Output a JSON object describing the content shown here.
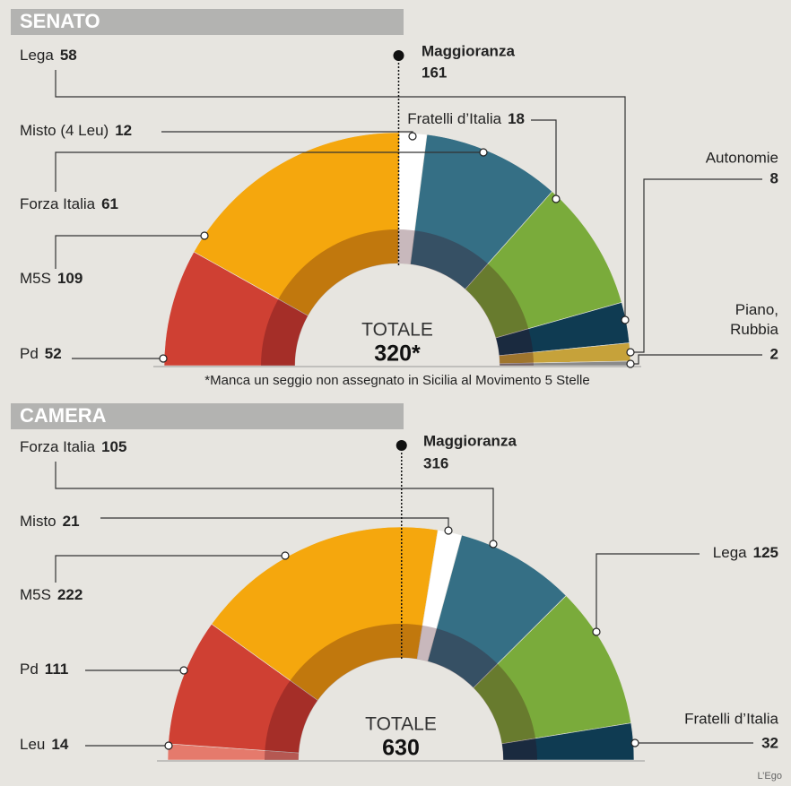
{
  "chart_data": [
    {
      "type": "semicircle",
      "title": "SENATO",
      "categories": [
        "Pd",
        "M5S",
        "Misto (4 Leu)",
        "Forza Italia",
        "Lega",
        "Fratelli d’Italia",
        "Autonomie",
        "Piano, Rubbia"
      ],
      "values": [
        52,
        109,
        12,
        61,
        58,
        18,
        8,
        2
      ],
      "colors": [
        "#cf4033",
        "#f5a70d",
        "#ffffff",
        "#356f85",
        "#7aab3b",
        "#0f3b52",
        "#c6a23a",
        "#8a8a8a"
      ],
      "majority_label": "Maggioranza",
      "majority": 161,
      "total_label": "TOTALE",
      "total": {
        "value": 320,
        "label": "320*"
      },
      "footnote": "*Manca un seggio non assegnato in Sicilia al Movimento 5 Stelle"
    },
    {
      "type": "semicircle",
      "title": "CAMERA",
      "categories": [
        "Leu",
        "Pd",
        "M5S",
        "Misto",
        "Forza Italia",
        "Lega",
        "Fratelli d’Italia"
      ],
      "values": [
        14,
        111,
        222,
        21,
        105,
        125,
        32
      ],
      "colors": [
        "#e57a6c",
        "#cf4033",
        "#f5a70d",
        "#ffffff",
        "#356f85",
        "#7aab3b",
        "#0f3b52"
      ],
      "majority_label": "Maggioranza",
      "majority": 316,
      "total_label": "TOTALE",
      "total": 630,
      "credit": "L’Ego"
    }
  ]
}
